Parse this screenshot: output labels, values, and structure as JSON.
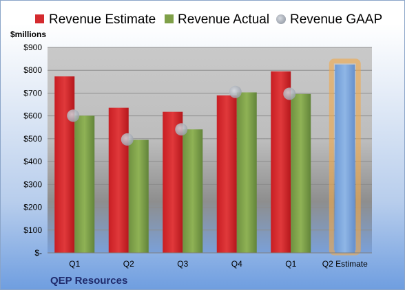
{
  "chart_data": {
    "type": "bar",
    "unit_label": "$millions",
    "company": "QEP Resources",
    "categories": [
      "Q1",
      "Q2",
      "Q3",
      "Q4",
      "Q1",
      "Q2 Estimate"
    ],
    "y_ticks": [
      "$-",
      "$100",
      "$200",
      "$300",
      "$400",
      "$500",
      "$600",
      "$700",
      "$800",
      "$900"
    ],
    "ylim": [
      0,
      900
    ],
    "grid": true,
    "legend": "top",
    "series": [
      {
        "name": "Revenue Estimate",
        "type": "bar",
        "color": "#d42a2e",
        "values": [
          773,
          636,
          618,
          690,
          795,
          null
        ]
      },
      {
        "name": "Revenue Actual",
        "type": "bar",
        "color": "#7fa048",
        "values": [
          601,
          495,
          541,
          703,
          696,
          null
        ]
      },
      {
        "name": "Revenue GAAP",
        "type": "marker",
        "color": "#a9aeb8",
        "values": [
          601,
          497,
          541,
          705,
          697,
          null
        ]
      },
      {
        "name": "Q2 Estimate",
        "type": "bar",
        "color": "#7ba6dd",
        "highlight": "#f0a94a",
        "values": [
          null,
          null,
          null,
          null,
          null,
          825
        ]
      }
    ]
  }
}
